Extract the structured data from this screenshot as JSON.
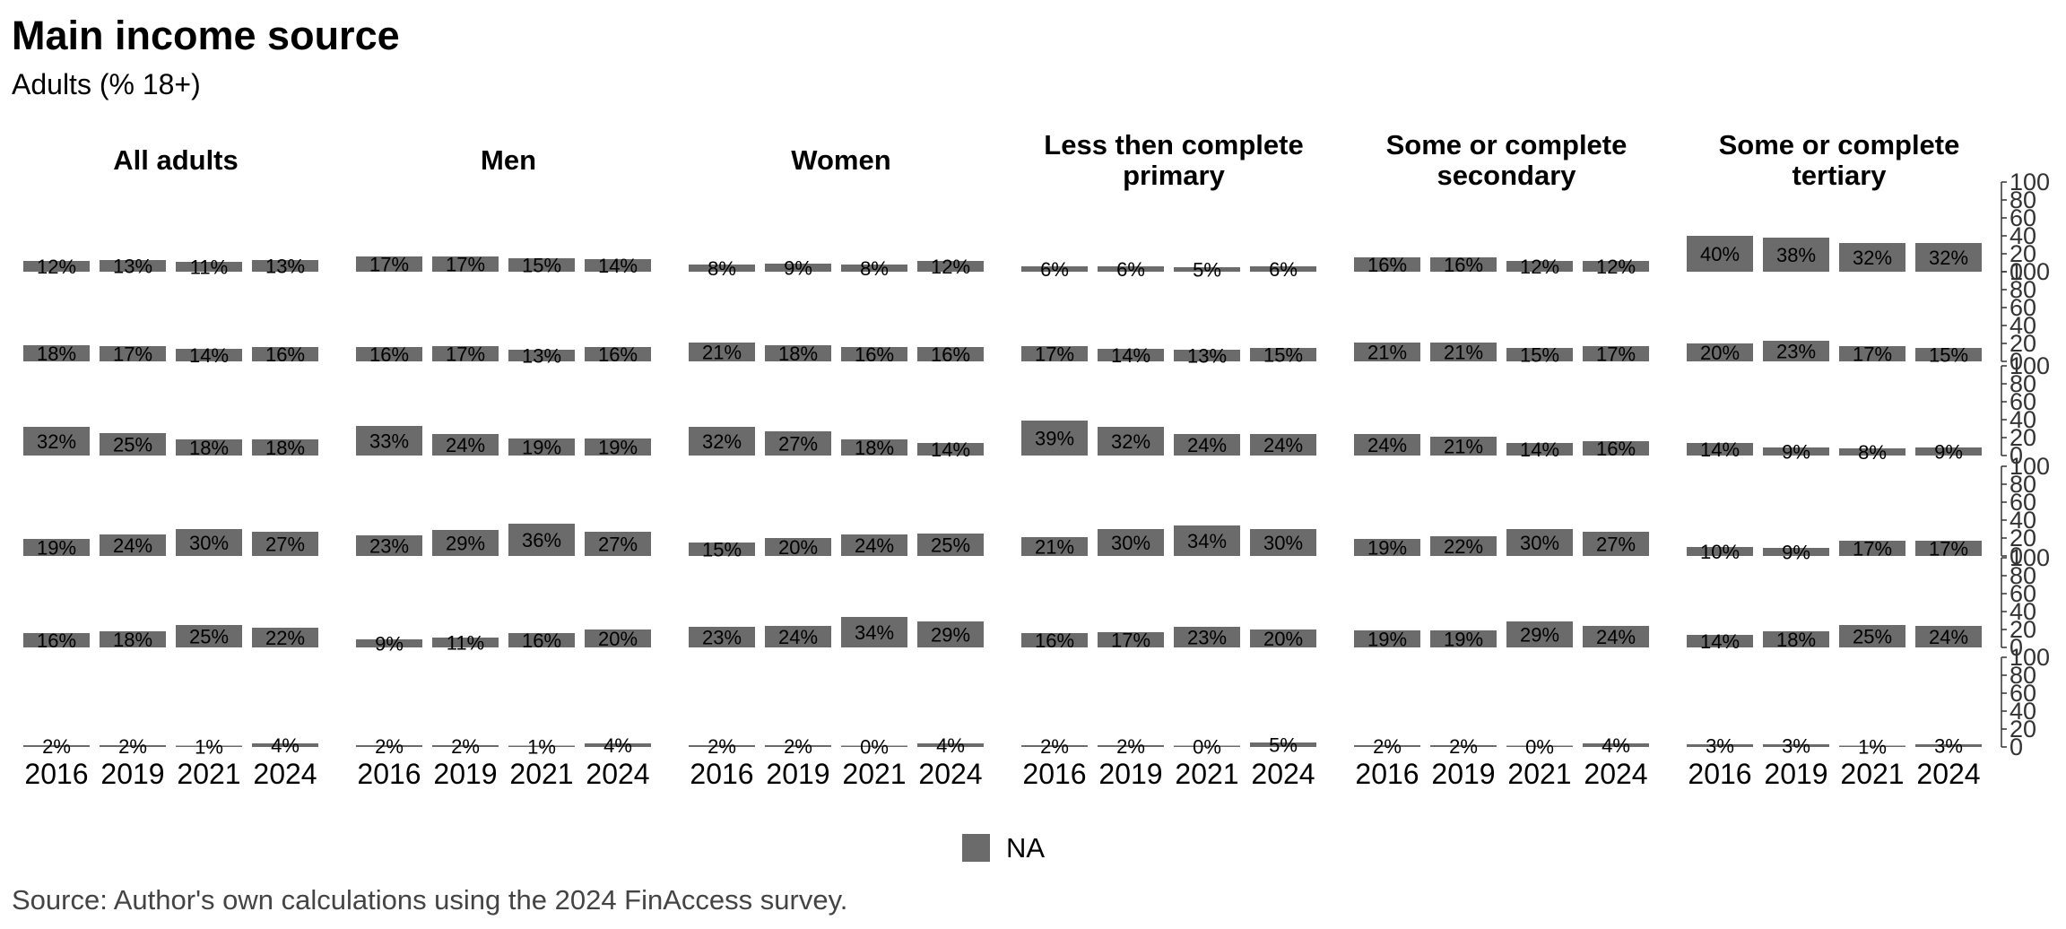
{
  "title": "Main income source",
  "subtitle": "Adults (% 18+)",
  "source": "Source: Author's own calculations using the 2024 FinAccess survey.",
  "chart_data": {
    "type": "bar",
    "categories": [
      "2016",
      "2019",
      "2021",
      "2024"
    ],
    "facets": [
      "All adults",
      "Men",
      "Women",
      "Less then complete primary",
      "Some or complete secondary",
      "Some or complete tertiary"
    ],
    "facet_title_lines": [
      [
        "All adults"
      ],
      [
        "Men"
      ],
      [
        "Women"
      ],
      [
        "Less then complete",
        "primary"
      ],
      [
        "Some or complete",
        "secondary"
      ],
      [
        "Some or complete",
        "tertiary"
      ]
    ],
    "rows": 6,
    "ylim": [
      0,
      100
    ],
    "yticks": [
      "0",
      "20",
      "40",
      "60",
      "80",
      "100"
    ],
    "values": [
      [
        [
          12,
          13,
          11,
          13
        ],
        [
          17,
          17,
          15,
          14
        ],
        [
          8,
          9,
          8,
          12
        ],
        [
          6,
          6,
          5,
          6
        ],
        [
          16,
          16,
          12,
          12
        ],
        [
          40,
          38,
          32,
          32
        ]
      ],
      [
        [
          18,
          17,
          14,
          16
        ],
        [
          16,
          17,
          13,
          16
        ],
        [
          21,
          18,
          16,
          16
        ],
        [
          17,
          14,
          13,
          15
        ],
        [
          21,
          21,
          15,
          17
        ],
        [
          20,
          23,
          17,
          15
        ]
      ],
      [
        [
          32,
          25,
          18,
          18
        ],
        [
          33,
          24,
          19,
          19
        ],
        [
          32,
          27,
          18,
          14
        ],
        [
          39,
          32,
          24,
          24
        ],
        [
          24,
          21,
          14,
          16
        ],
        [
          14,
          9,
          8,
          9
        ]
      ],
      [
        [
          19,
          24,
          30,
          27
        ],
        [
          23,
          29,
          36,
          27
        ],
        [
          15,
          20,
          24,
          25
        ],
        [
          21,
          30,
          34,
          30
        ],
        [
          19,
          22,
          30,
          27
        ],
        [
          10,
          9,
          17,
          17
        ]
      ],
      [
        [
          16,
          18,
          25,
          22
        ],
        [
          9,
          11,
          16,
          20
        ],
        [
          23,
          24,
          34,
          29
        ],
        [
          16,
          17,
          23,
          20
        ],
        [
          19,
          19,
          29,
          24
        ],
        [
          14,
          18,
          25,
          24
        ]
      ],
      [
        [
          2,
          2,
          1,
          4
        ],
        [
          2,
          2,
          1,
          4
        ],
        [
          2,
          2,
          0,
          4
        ],
        [
          2,
          2,
          0,
          5
        ],
        [
          2,
          2,
          0,
          4
        ],
        [
          3,
          3,
          1,
          3
        ]
      ]
    ],
    "bar_color": "#6b6b6b",
    "legend": {
      "label": "NA",
      "color": "#6b6b6b",
      "position": "bottom"
    },
    "grid": false
  }
}
